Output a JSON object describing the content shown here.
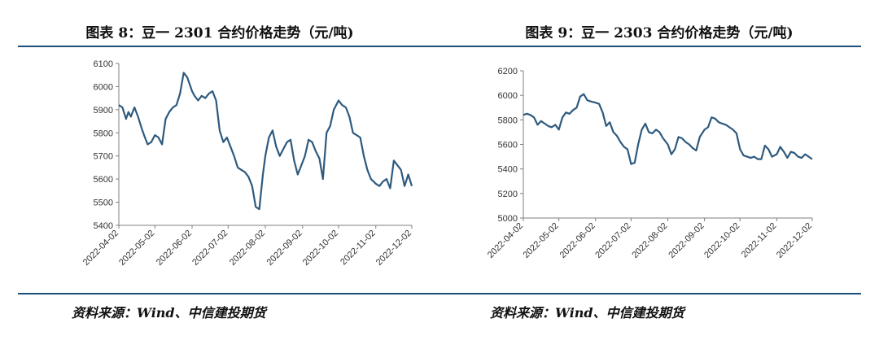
{
  "chart_data": [
    {
      "type": "line",
      "title": "图表 8：豆一 2301 合约价格走势（元/吨)",
      "ylim": [
        5400,
        6100
      ],
      "y_ticks": [
        5400,
        5500,
        5600,
        5700,
        5800,
        5900,
        6000,
        6100
      ],
      "x_ticks": [
        "2022-04-02",
        "2022-05-02",
        "2022-06-02",
        "2022-07-02",
        "2022-08-02",
        "2022-09-02",
        "2022-10-02",
        "2022-11-02",
        "2022-12-02"
      ],
      "color": "#2e5a7e",
      "grid": false,
      "source": "资料来源：Wind、中信建投期货",
      "series": [
        {
          "x": [
            "2022-04-02",
            "2022-04-05",
            "2022-04-08",
            "2022-04-10",
            "2022-04-12",
            "2022-04-15",
            "2022-04-18",
            "2022-04-21",
            "2022-04-23",
            "2022-04-26",
            "2022-04-29",
            "2022-05-02",
            "2022-05-05",
            "2022-05-08",
            "2022-05-11",
            "2022-05-14",
            "2022-05-17",
            "2022-05-20",
            "2022-05-23",
            "2022-05-26",
            "2022-05-29",
            "2022-06-02",
            "2022-06-04",
            "2022-06-07",
            "2022-06-10",
            "2022-06-13",
            "2022-06-16",
            "2022-06-19",
            "2022-06-22",
            "2022-06-25",
            "2022-06-28",
            "2022-07-01",
            "2022-07-04",
            "2022-07-07",
            "2022-07-10",
            "2022-07-13",
            "2022-07-16",
            "2022-07-19",
            "2022-07-22",
            "2022-07-25",
            "2022-07-28",
            "2022-07-31",
            "2022-08-02",
            "2022-08-05",
            "2022-08-08",
            "2022-08-11",
            "2022-08-14",
            "2022-08-17",
            "2022-08-20",
            "2022-08-23",
            "2022-08-26",
            "2022-08-29",
            "2022-09-01",
            "2022-09-04",
            "2022-09-07",
            "2022-09-10",
            "2022-09-13",
            "2022-09-16",
            "2022-09-19",
            "2022-09-22",
            "2022-09-25",
            "2022-09-28",
            "2022-10-02",
            "2022-10-05",
            "2022-10-08",
            "2022-10-11",
            "2022-10-14",
            "2022-10-17",
            "2022-10-20",
            "2022-10-23",
            "2022-10-26",
            "2022-10-29",
            "2022-11-02",
            "2022-11-05",
            "2022-11-08",
            "2022-11-11",
            "2022-11-14",
            "2022-11-17",
            "2022-11-20",
            "2022-11-23",
            "2022-11-26",
            "2022-11-29",
            "2022-12-02"
          ],
          "values": [
            5920,
            5910,
            5860,
            5890,
            5870,
            5910,
            5870,
            5820,
            5790,
            5750,
            5760,
            5790,
            5780,
            5750,
            5860,
            5890,
            5910,
            5920,
            5970,
            6060,
            6040,
            5980,
            5960,
            5940,
            5960,
            5950,
            5970,
            5980,
            5940,
            5810,
            5760,
            5780,
            5740,
            5700,
            5650,
            5640,
            5630,
            5610,
            5570,
            5480,
            5470,
            5620,
            5700,
            5780,
            5810,
            5740,
            5700,
            5730,
            5760,
            5770,
            5680,
            5620,
            5660,
            5700,
            5770,
            5760,
            5720,
            5690,
            5600,
            5800,
            5830,
            5900,
            5940,
            5920,
            5910,
            5870,
            5800,
            5790,
            5780,
            5700,
            5640,
            5600,
            5580,
            5570,
            5590,
            5600,
            5560,
            5680,
            5660,
            5640,
            5570,
            5620,
            5570
          ]
        }
      ]
    },
    {
      "type": "line",
      "title": "图表 9：豆一 2303 合约价格走势（元/吨)",
      "ylim": [
        5000,
        6200
      ],
      "y_ticks": [
        5000,
        5200,
        5400,
        5600,
        5800,
        6000,
        6200
      ],
      "x_ticks": [
        "2022-04-02",
        "2022-05-02",
        "2022-06-02",
        "2022-07-02",
        "2022-08-02",
        "2022-09-02",
        "2022-10-02",
        "2022-11-02",
        "2022-12-02"
      ],
      "color": "#2e5a7e",
      "grid": false,
      "source": "资料来源：Wind、中信建投期货",
      "series": [
        {
          "x": [
            "2022-04-02",
            "2022-04-05",
            "2022-04-08",
            "2022-04-11",
            "2022-04-14",
            "2022-04-17",
            "2022-04-20",
            "2022-04-23",
            "2022-04-26",
            "2022-04-29",
            "2022-05-02",
            "2022-05-05",
            "2022-05-08",
            "2022-05-11",
            "2022-05-14",
            "2022-05-17",
            "2022-05-20",
            "2022-05-23",
            "2022-05-26",
            "2022-05-29",
            "2022-06-02",
            "2022-06-05",
            "2022-06-08",
            "2022-06-11",
            "2022-06-14",
            "2022-06-17",
            "2022-06-20",
            "2022-06-23",
            "2022-06-26",
            "2022-06-29",
            "2022-07-02",
            "2022-07-05",
            "2022-07-08",
            "2022-07-11",
            "2022-07-14",
            "2022-07-17",
            "2022-07-20",
            "2022-07-23",
            "2022-07-26",
            "2022-07-29",
            "2022-08-02",
            "2022-08-05",
            "2022-08-08",
            "2022-08-11",
            "2022-08-14",
            "2022-08-17",
            "2022-08-20",
            "2022-08-23",
            "2022-08-26",
            "2022-08-29",
            "2022-09-02",
            "2022-09-05",
            "2022-09-08",
            "2022-09-11",
            "2022-09-14",
            "2022-09-17",
            "2022-09-20",
            "2022-09-23",
            "2022-09-26",
            "2022-09-29",
            "2022-10-02",
            "2022-10-05",
            "2022-10-08",
            "2022-10-11",
            "2022-10-14",
            "2022-10-17",
            "2022-10-20",
            "2022-10-23",
            "2022-10-26",
            "2022-10-29",
            "2022-11-02",
            "2022-11-05",
            "2022-11-08",
            "2022-11-11",
            "2022-11-14",
            "2022-11-17",
            "2022-11-20",
            "2022-11-23",
            "2022-11-26",
            "2022-11-29",
            "2022-12-02"
          ],
          "values": [
            5840,
            5850,
            5840,
            5820,
            5760,
            5790,
            5770,
            5750,
            5740,
            5760,
            5720,
            5820,
            5860,
            5850,
            5880,
            5900,
            5990,
            6010,
            5960,
            5950,
            5940,
            5930,
            5860,
            5750,
            5780,
            5700,
            5670,
            5620,
            5580,
            5560,
            5440,
            5450,
            5600,
            5720,
            5770,
            5700,
            5690,
            5720,
            5700,
            5650,
            5600,
            5520,
            5560,
            5660,
            5650,
            5620,
            5600,
            5570,
            5550,
            5660,
            5720,
            5740,
            5820,
            5810,
            5780,
            5770,
            5760,
            5740,
            5720,
            5690,
            5560,
            5510,
            5500,
            5490,
            5500,
            5480,
            5480,
            5590,
            5560,
            5500,
            5520,
            5580,
            5540,
            5490,
            5540,
            5530,
            5500,
            5490,
            5520,
            5500,
            5480
          ]
        }
      ]
    }
  ]
}
